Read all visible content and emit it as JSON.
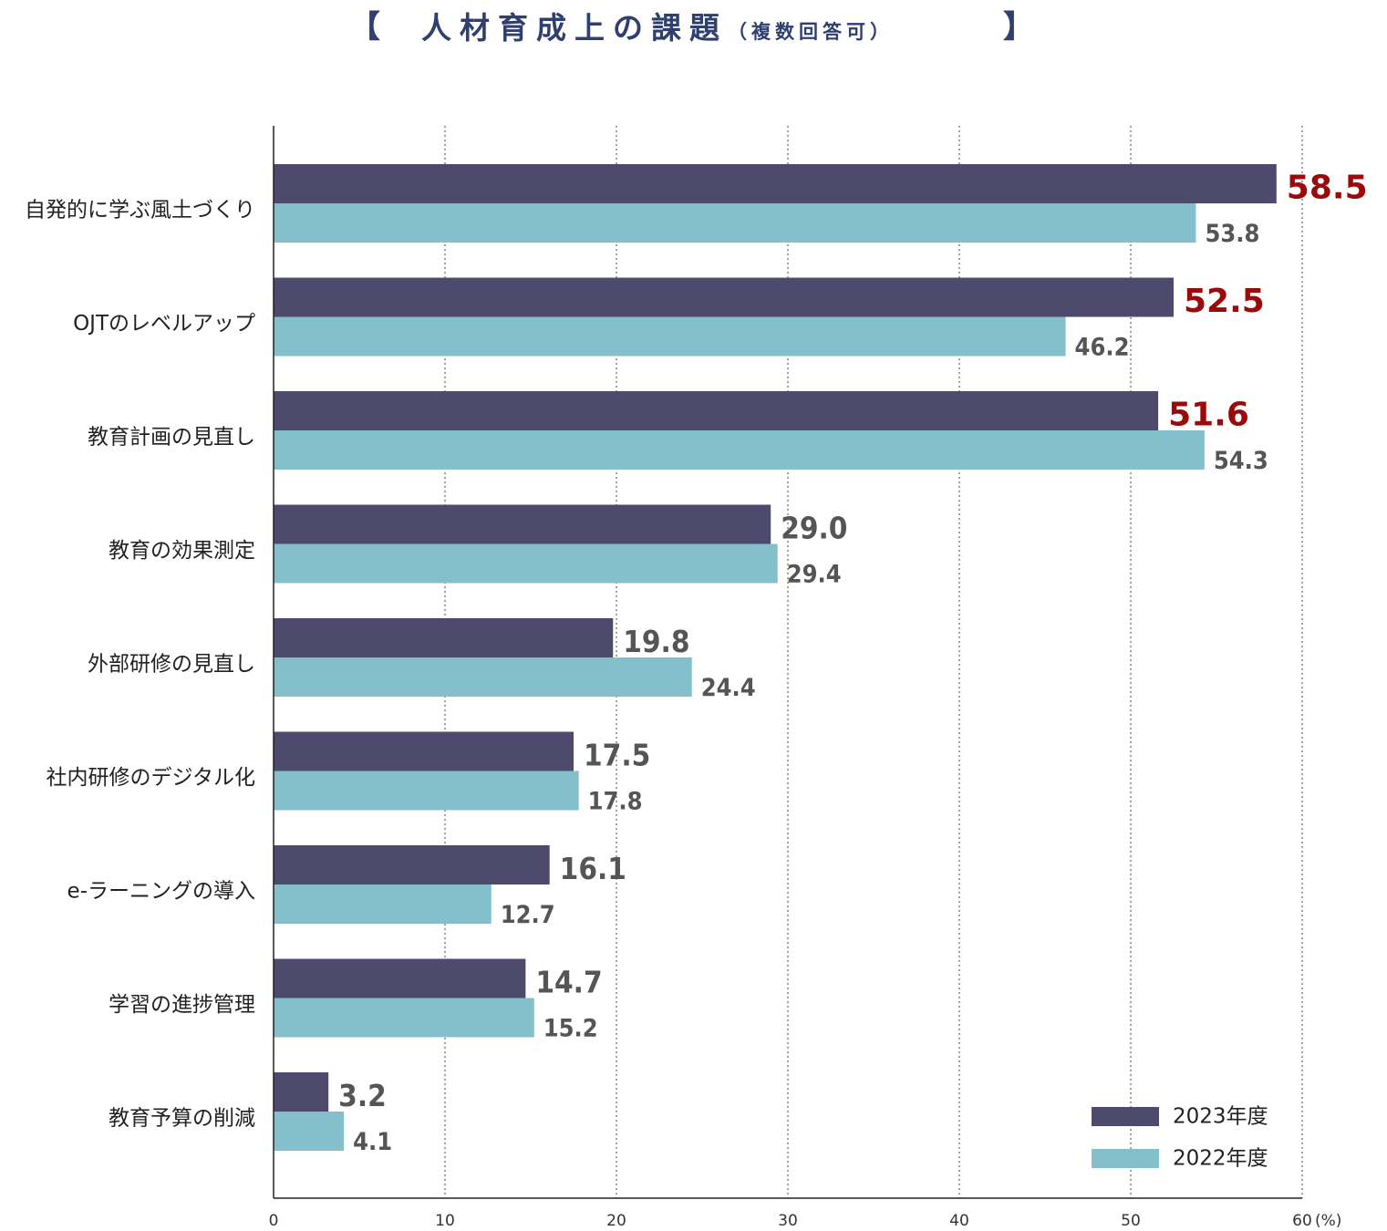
{
  "title": {
    "open_bracket": "【",
    "main": "人材育成上の課題",
    "sub": "（複数回答可）",
    "close_bracket": "】"
  },
  "colors": {
    "series_2023": "#4e4a6e",
    "series_2022": "#84bfcc",
    "highlight": "#9a0a0a",
    "value_text": "#555555"
  },
  "chart_data": {
    "type": "bar",
    "orientation": "horizontal",
    "categories": [
      "自発的に学ぶ風土づくり",
      "OJTのレベルアップ",
      "教育計画の見直し",
      "教育の効果測定",
      "外部研修の見直し",
      "社内研修のデジタル化",
      "e-ラーニングの導入",
      "学習の進捗管理",
      "教育予算の削減"
    ],
    "series": [
      {
        "name": "2023年度",
        "values": [
          58.5,
          52.5,
          51.6,
          29.0,
          19.8,
          17.5,
          16.1,
          14.7,
          3.2
        ],
        "labels": [
          "58.5",
          "52.5",
          "51.6",
          "29.0",
          "19.8",
          "17.5",
          "16.1",
          "14.7",
          "3.2"
        ]
      },
      {
        "name": "2022年度",
        "values": [
          53.8,
          46.2,
          54.3,
          29.4,
          24.4,
          17.8,
          12.7,
          15.2,
          4.1
        ],
        "labels": [
          "53.8",
          "46.2",
          "54.3",
          "29.4",
          "24.4",
          "17.8",
          "12.7",
          "15.2",
          "4.1"
        ]
      }
    ],
    "highlighted_2023_values": [
      0,
      1,
      2
    ],
    "xlim": [
      0,
      60
    ],
    "xticks": [
      "0",
      "10",
      "20",
      "30",
      "40",
      "50",
      "60"
    ],
    "x_unit": "(%)",
    "grid": "vertical dotted",
    "legend_position": "bottom-right"
  }
}
